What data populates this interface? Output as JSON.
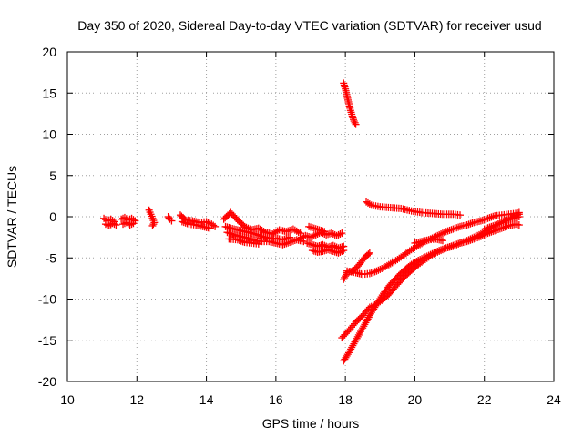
{
  "chart_data": {
    "type": "scatter",
    "title": "Day 350 of 2020, Sidereal Day-to-day VTEC variation (SDTVAR) for receiver usud",
    "xlabel": "GPS time / hours",
    "ylabel": "SDTVAR / TECUs",
    "xlim": [
      10,
      24
    ],
    "ylim": [
      -20,
      20
    ],
    "xticks": [
      "10",
      "12",
      "14",
      "16",
      "18",
      "20",
      "22",
      "24"
    ],
    "yticks": [
      "20",
      "15",
      "10",
      "5",
      "0",
      "-5",
      "-10",
      "-15",
      "-20"
    ],
    "grid": true,
    "marker": "plus",
    "series": [
      {
        "color": "#ff0000",
        "segments": [
          [
            [
              11.05,
              -0.2
            ],
            [
              11.15,
              -0.5
            ],
            [
              11.25,
              -0.3
            ],
            [
              11.35,
              -0.6
            ]
          ],
          [
            [
              11.1,
              -0.9
            ],
            [
              11.2,
              -1.1
            ],
            [
              11.3,
              -0.8
            ],
            [
              11.4,
              -1.0
            ]
          ],
          [
            [
              11.55,
              -0.3
            ],
            [
              11.65,
              -0.1
            ],
            [
              11.75,
              -0.4
            ],
            [
              11.85,
              -0.2
            ],
            [
              11.95,
              -0.5
            ]
          ],
          [
            [
              11.6,
              -0.9
            ],
            [
              11.7,
              -0.7
            ],
            [
              11.8,
              -1.0
            ],
            [
              11.9,
              -0.8
            ]
          ],
          [
            [
              12.35,
              0.8
            ],
            [
              12.4,
              0.3
            ],
            [
              12.45,
              -0.2
            ],
            [
              12.5,
              -0.7
            ],
            [
              12.45,
              -1.1
            ]
          ],
          [
            [
              12.9,
              0.0
            ],
            [
              12.95,
              -0.3
            ],
            [
              13.0,
              -0.5
            ]
          ],
          [
            [
              13.25,
              0.2
            ],
            [
              13.4,
              -0.4
            ],
            [
              13.6,
              -0.5
            ],
            [
              13.8,
              -0.7
            ],
            [
              14.0,
              -0.6
            ],
            [
              14.15,
              -0.9
            ],
            [
              14.25,
              -1.2
            ]
          ],
          [
            [
              13.3,
              -0.6
            ],
            [
              13.5,
              -0.9
            ],
            [
              13.7,
              -1.0
            ],
            [
              13.9,
              -1.2
            ],
            [
              14.1,
              -1.4
            ]
          ],
          [
            [
              14.5,
              -0.3
            ],
            [
              14.7,
              0.5
            ],
            [
              14.9,
              -0.4
            ],
            [
              15.1,
              -1.2
            ],
            [
              15.3,
              -1.6
            ],
            [
              15.5,
              -1.4
            ],
            [
              15.7,
              -1.9
            ],
            [
              15.9,
              -2.1
            ],
            [
              16.1,
              -1.6
            ],
            [
              16.3,
              -1.8
            ],
            [
              16.5,
              -1.5
            ],
            [
              16.7,
              -2.0
            ]
          ],
          [
            [
              14.55,
              -1.2
            ],
            [
              14.8,
              -1.5
            ],
            [
              15.0,
              -1.7
            ],
            [
              15.2,
              -1.9
            ],
            [
              15.4,
              -2.1
            ],
            [
              15.6,
              -2.4
            ],
            [
              15.8,
              -2.6
            ],
            [
              16.0,
              -2.6
            ],
            [
              16.2,
              -2.8
            ],
            [
              16.4,
              -2.5
            ]
          ],
          [
            [
              14.6,
              -1.9
            ],
            [
              14.8,
              -2.2
            ],
            [
              15.0,
              -2.4
            ],
            [
              15.2,
              -2.6
            ],
            [
              15.4,
              -2.9
            ],
            [
              15.6,
              -3.0
            ],
            [
              15.8,
              -3.0
            ],
            [
              16.0,
              -3.2
            ],
            [
              16.2,
              -3.4
            ],
            [
              16.4,
              -3.1
            ],
            [
              16.6,
              -2.8
            ],
            [
              16.8,
              -3.0
            ]
          ],
          [
            [
              14.65,
              -2.7
            ],
            [
              14.9,
              -2.8
            ],
            [
              15.1,
              -3.1
            ],
            [
              15.3,
              -3.2
            ],
            [
              15.5,
              -3.3
            ]
          ],
          [
            [
              16.7,
              -2.6
            ],
            [
              16.85,
              -2.3
            ],
            [
              17.0,
              -2.5
            ],
            [
              17.15,
              -2.2
            ],
            [
              17.3,
              -1.9
            ],
            [
              17.45,
              -2.2
            ],
            [
              17.6,
              -2.0
            ],
            [
              17.75,
              -2.3
            ],
            [
              17.9,
              -2.0
            ]
          ],
          [
            [
              16.9,
              -3.2
            ],
            [
              17.05,
              -3.4
            ],
            [
              17.2,
              -3.6
            ],
            [
              17.35,
              -3.4
            ],
            [
              17.5,
              -3.7
            ],
            [
              17.65,
              -3.5
            ],
            [
              17.8,
              -3.8
            ],
            [
              17.95,
              -3.6
            ]
          ],
          [
            [
              16.95,
              -1.2
            ],
            [
              17.1,
              -1.4
            ],
            [
              17.25,
              -1.6
            ],
            [
              17.4,
              -1.8
            ]
          ],
          [
            [
              17.05,
              -4.1
            ],
            [
              17.2,
              -4.3
            ],
            [
              17.35,
              -4.2
            ],
            [
              17.5,
              -4.0
            ],
            [
              17.65,
              -4.2
            ],
            [
              17.8,
              -4.4
            ],
            [
              17.95,
              -4.1
            ]
          ],
          [
            [
              17.95,
              16.2
            ],
            [
              18.0,
              15.5
            ],
            [
              18.05,
              14.6
            ],
            [
              18.1,
              13.7
            ],
            [
              18.15,
              12.9
            ],
            [
              18.2,
              12.2
            ],
            [
              18.25,
              11.6
            ],
            [
              18.3,
              11.2
            ]
          ],
          [
            [
              18.6,
              1.8
            ],
            [
              18.75,
              1.4
            ],
            [
              19.0,
              1.2
            ],
            [
              19.3,
              1.1
            ],
            [
              19.6,
              1.0
            ],
            [
              19.9,
              0.7
            ],
            [
              20.2,
              0.5
            ],
            [
              20.5,
              0.4
            ],
            [
              20.8,
              0.3
            ],
            [
              21.1,
              0.3
            ],
            [
              21.3,
              0.2
            ]
          ],
          [
            [
              17.95,
              -7.6
            ],
            [
              18.05,
              -6.8
            ],
            [
              18.25,
              -6.5
            ],
            [
              18.4,
              -5.8
            ],
            [
              18.55,
              -5.0
            ],
            [
              18.7,
              -4.4
            ]
          ],
          [
            [
              18.05,
              -6.6
            ],
            [
              18.3,
              -6.8
            ],
            [
              18.5,
              -7.0
            ],
            [
              18.7,
              -6.9
            ],
            [
              18.9,
              -6.6
            ],
            [
              19.1,
              -6.2
            ],
            [
              19.3,
              -5.7
            ],
            [
              19.5,
              -5.2
            ],
            [
              19.7,
              -4.6
            ],
            [
              19.9,
              -4.0
            ],
            [
              20.1,
              -3.5
            ],
            [
              20.3,
              -3.0
            ],
            [
              20.5,
              -2.6
            ],
            [
              20.7,
              -2.2
            ],
            [
              20.9,
              -1.8
            ],
            [
              21.1,
              -1.5
            ],
            [
              21.3,
              -1.2
            ],
            [
              21.5,
              -1.0
            ],
            [
              21.7,
              -0.7
            ],
            [
              21.9,
              -0.5
            ],
            [
              22.1,
              -0.2
            ],
            [
              22.3,
              0.1
            ],
            [
              22.5,
              0.2
            ],
            [
              22.7,
              0.3
            ],
            [
              22.9,
              0.4
            ],
            [
              23.0,
              0.5
            ]
          ],
          [
            [
              17.9,
              -14.7
            ],
            [
              18.1,
              -13.8
            ],
            [
              18.3,
              -12.8
            ],
            [
              18.5,
              -12.0
            ],
            [
              18.7,
              -11.0
            ],
            [
              18.9,
              -10.6
            ],
            [
              19.1,
              -10.0
            ],
            [
              19.3,
              -9.2
            ],
            [
              19.5,
              -8.2
            ],
            [
              19.7,
              -7.3
            ],
            [
              19.9,
              -6.5
            ],
            [
              20.1,
              -5.8
            ],
            [
              20.3,
              -5.2
            ],
            [
              20.5,
              -4.6
            ],
            [
              20.7,
              -4.2
            ],
            [
              20.9,
              -3.8
            ],
            [
              21.1,
              -3.6
            ],
            [
              21.3,
              -3.2
            ],
            [
              21.5,
              -3.0
            ],
            [
              21.7,
              -2.7
            ],
            [
              21.9,
              -2.4
            ],
            [
              22.1,
              -2.0
            ],
            [
              22.3,
              -1.7
            ],
            [
              22.5,
              -1.4
            ],
            [
              22.7,
              -1.1
            ],
            [
              22.9,
              -0.9
            ],
            [
              23.0,
              -1.0
            ]
          ],
          [
            [
              17.95,
              -17.5
            ],
            [
              18.1,
              -16.5
            ],
            [
              18.3,
              -15.0
            ],
            [
              18.5,
              -13.5
            ],
            [
              18.7,
              -12.0
            ],
            [
              18.9,
              -10.6
            ],
            [
              19.1,
              -9.3
            ],
            [
              19.3,
              -8.2
            ],
            [
              19.5,
              -7.3
            ],
            [
              19.7,
              -6.5
            ],
            [
              19.9,
              -5.8
            ],
            [
              20.1,
              -5.3
            ],
            [
              20.3,
              -4.9
            ],
            [
              20.5,
              -4.5
            ],
            [
              20.7,
              -4.1
            ],
            [
              20.9,
              -3.8
            ],
            [
              21.1,
              -3.5
            ],
            [
              21.3,
              -3.2
            ],
            [
              21.5,
              -2.9
            ],
            [
              21.7,
              -2.5
            ],
            [
              21.9,
              -2.1
            ],
            [
              22.1,
              -1.6
            ],
            [
              22.3,
              -1.1
            ],
            [
              22.5,
              -0.7
            ],
            [
              22.7,
              -0.3
            ],
            [
              22.9,
              0.1
            ],
            [
              23.0,
              0.3
            ]
          ],
          [
            [
              20.0,
              -3.2
            ],
            [
              20.2,
              -3.0
            ],
            [
              20.4,
              -2.8
            ],
            [
              20.6,
              -2.7
            ],
            [
              20.8,
              -2.9
            ]
          ],
          [
            [
              22.0,
              -1.5
            ],
            [
              22.2,
              -1.2
            ],
            [
              22.4,
              -0.9
            ],
            [
              22.6,
              -0.5
            ],
            [
              22.8,
              -0.2
            ],
            [
              23.0,
              0.0
            ]
          ]
        ]
      }
    ]
  }
}
